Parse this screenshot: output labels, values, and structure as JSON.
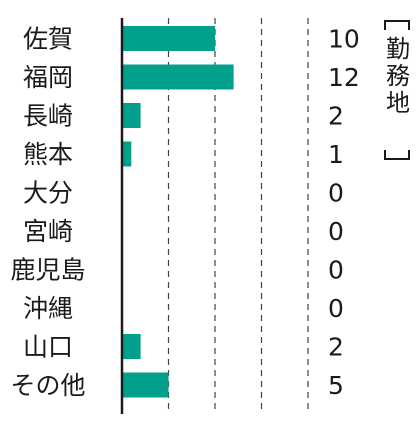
{
  "chart_data": {
    "type": "bar",
    "orientation": "horizontal",
    "categories": [
      "佐賀",
      "福岡",
      "長崎",
      "熊本",
      "大分",
      "宮崎",
      "鹿児島",
      "沖縄",
      "山口",
      "その他"
    ],
    "values": [
      10,
      12,
      2,
      1,
      0,
      0,
      0,
      0,
      2,
      5
    ],
    "ylabel": "勤務地",
    "xlim": [
      0,
      20
    ],
    "gridlines": [
      5,
      10,
      15,
      20
    ],
    "bar_color": "#00a08c",
    "legend": "none"
  }
}
